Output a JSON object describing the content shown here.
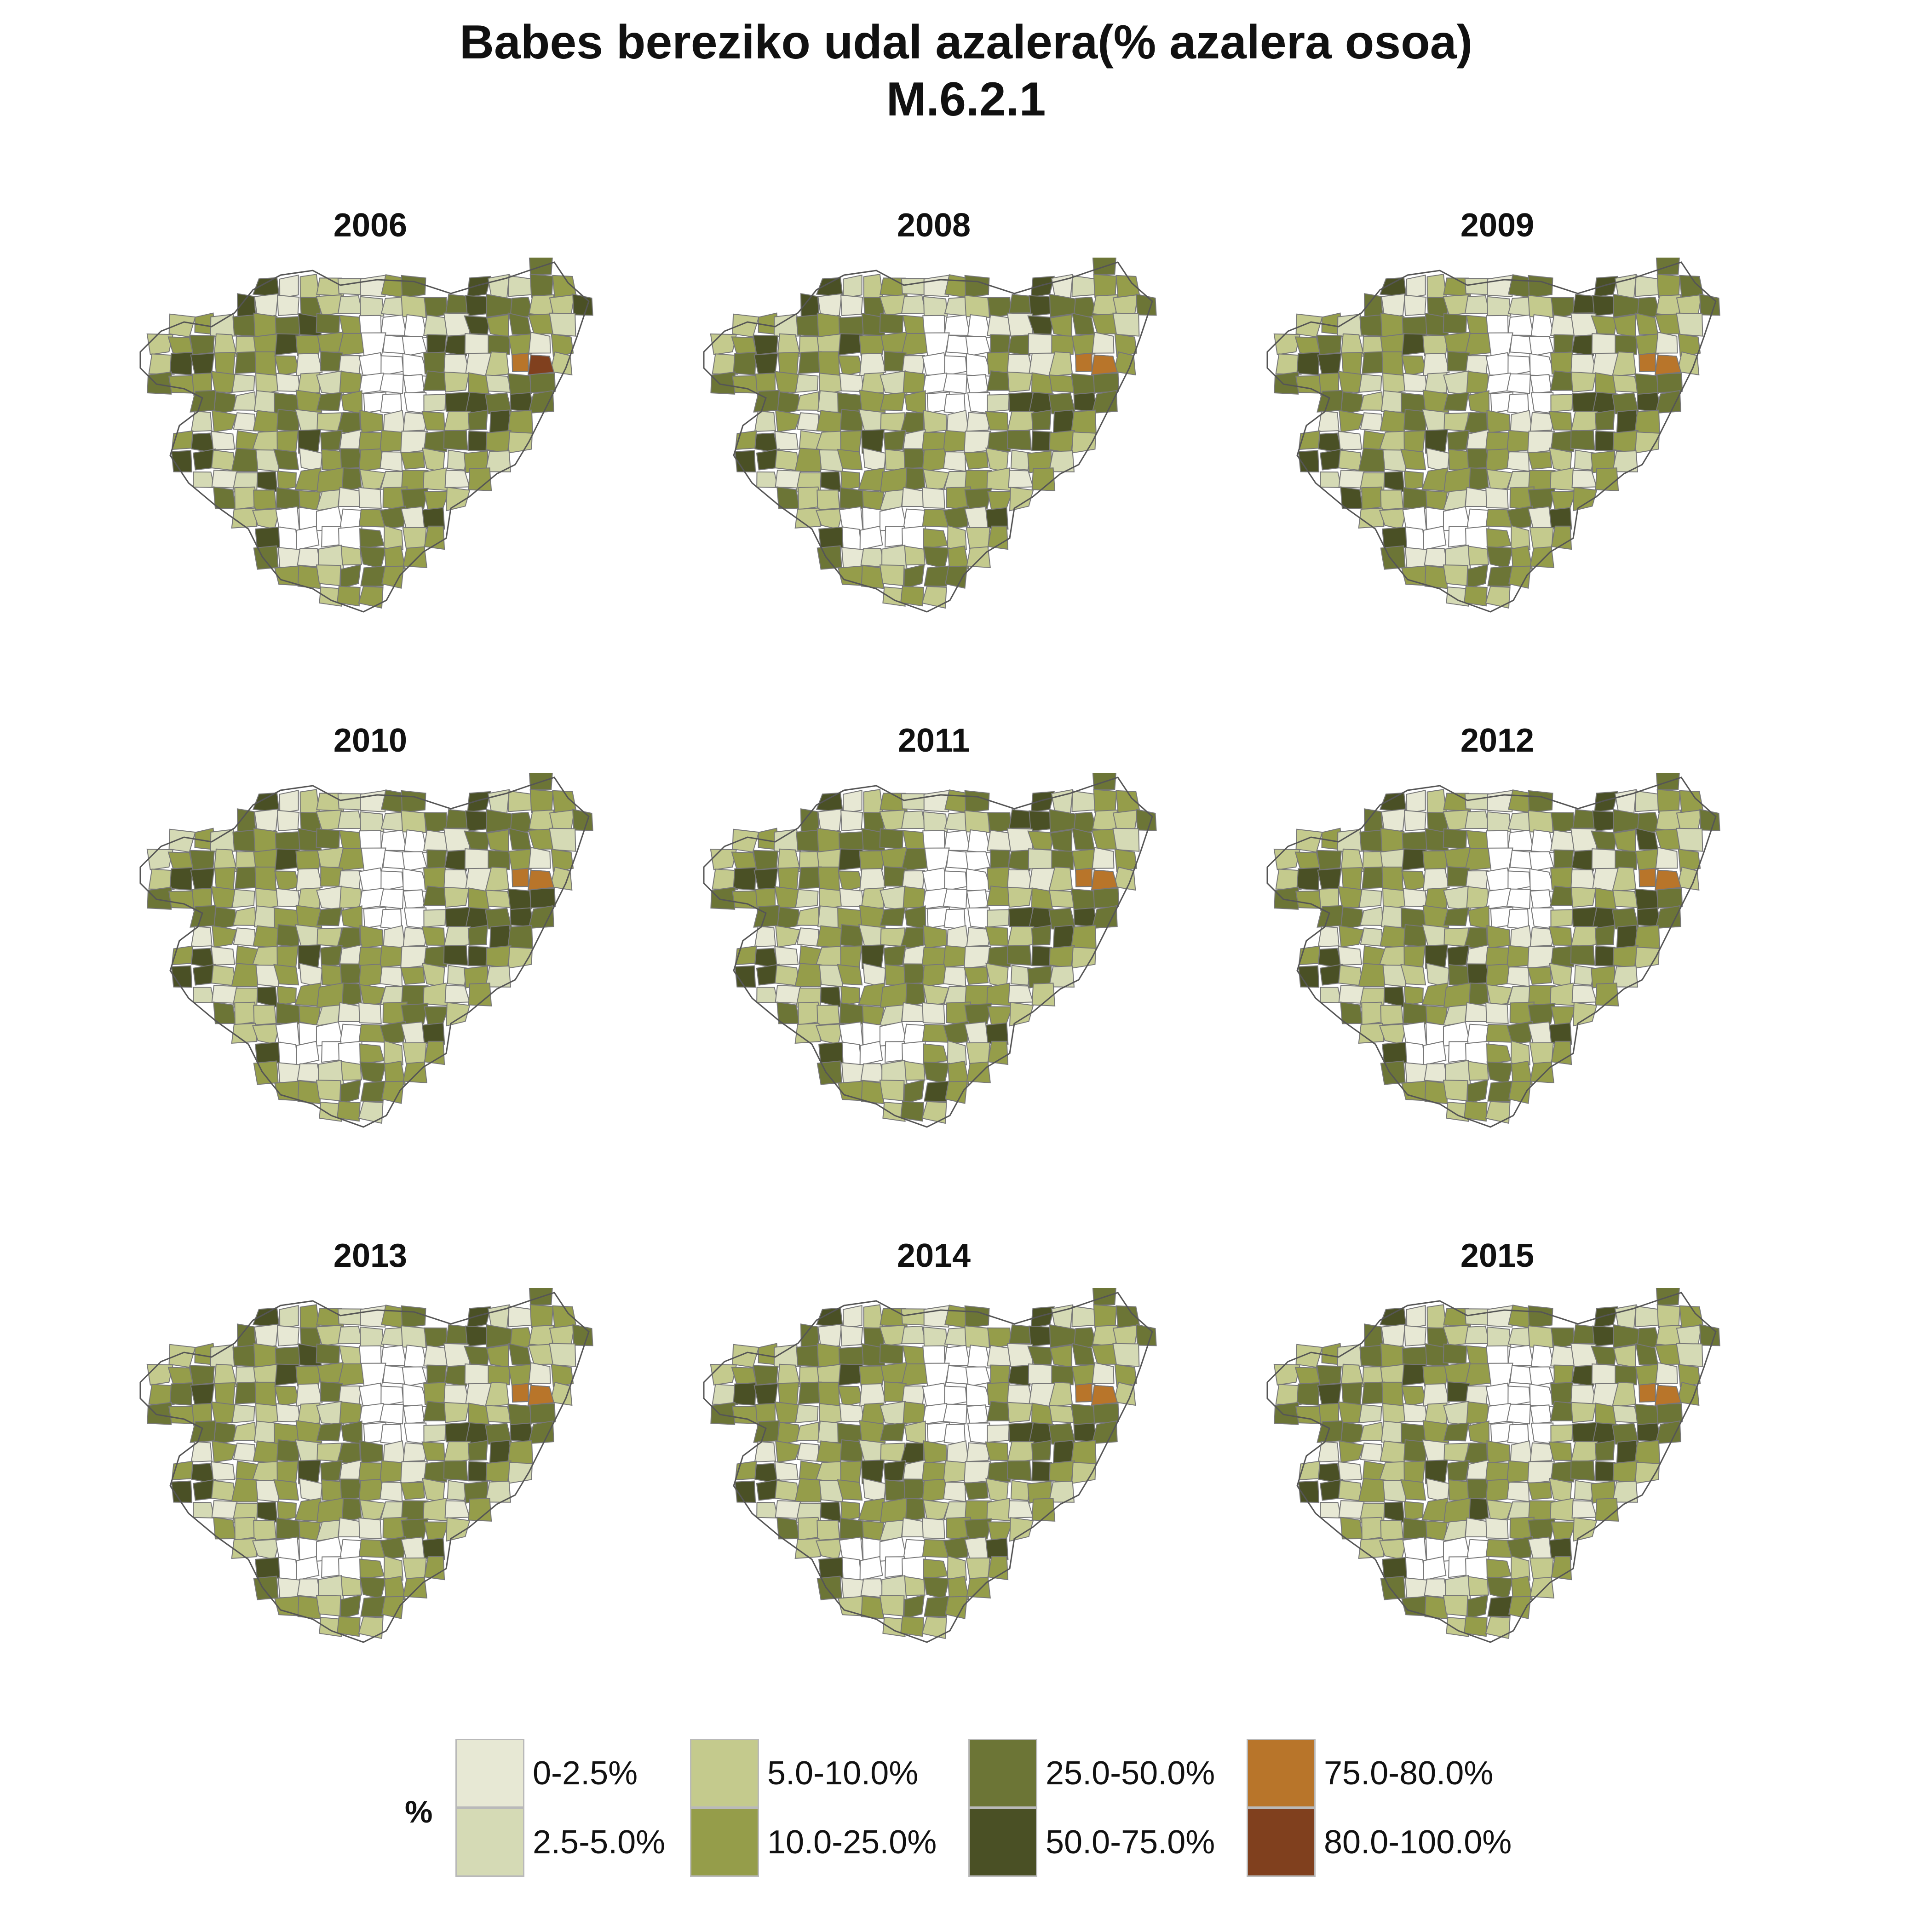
{
  "title": {
    "line1": "Babes bereziko udal azalera(% azalera osoa)",
    "line2": "M.6.2.1"
  },
  "legend": {
    "title": "%",
    "classes": [
      {
        "label": "0-2.5%",
        "color": "#e7e8d4"
      },
      {
        "label": "2.5-5.0%",
        "color": "#d5dab5"
      },
      {
        "label": "5.0-10.0%",
        "color": "#c4ca8d"
      },
      {
        "label": "10.0-25.0%",
        "color": "#959d4a"
      },
      {
        "label": "25.0-50.0%",
        "color": "#6c7536"
      },
      {
        "label": "50.0-75.0%",
        "color": "#4a5025"
      },
      {
        "label": "75.0-80.0%",
        "color": "#b8752a"
      },
      {
        "label": "80.0-100.0%",
        "color": "#80401e"
      }
    ]
  },
  "colors": {
    "border": "#777777",
    "no_data": "#ffffff"
  },
  "panels": [
    {
      "year": "2006"
    },
    {
      "year": "2008"
    },
    {
      "year": "2009"
    },
    {
      "year": "2010"
    },
    {
      "year": "2011"
    },
    {
      "year": "2012"
    },
    {
      "year": "2013"
    },
    {
      "year": "2014"
    },
    {
      "year": "2015"
    }
  ]
}
